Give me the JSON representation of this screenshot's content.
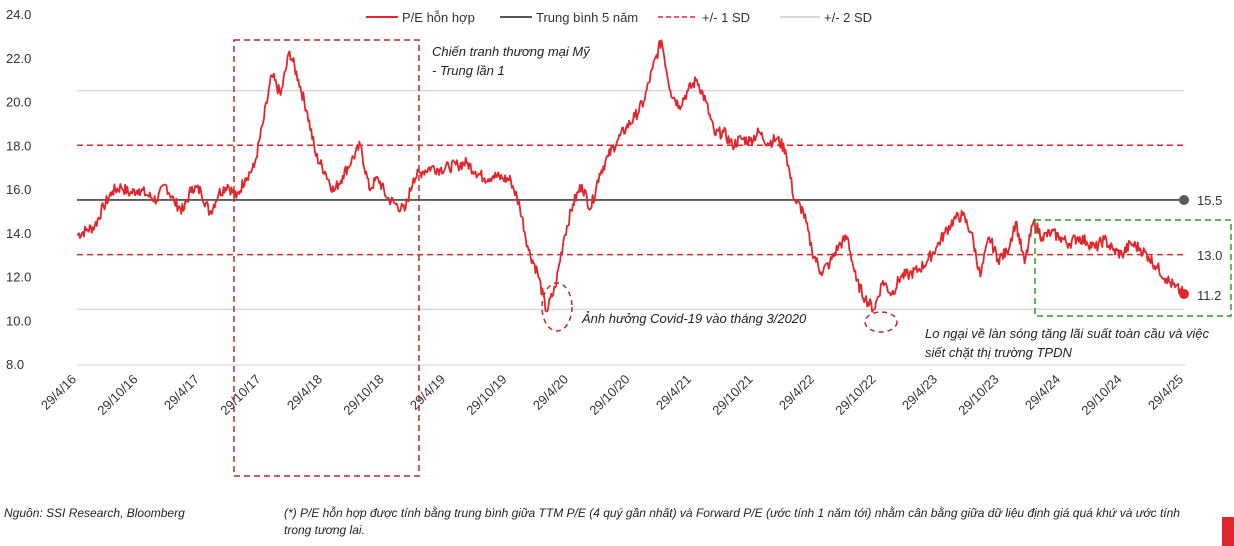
{
  "chart_data": {
    "type": "line",
    "ylim": [
      8.0,
      24.0
    ],
    "yticks": [
      "24.0",
      "22.0",
      "20.0",
      "18.0",
      "16.0",
      "14.0",
      "12.0",
      "10.0",
      "8.0"
    ],
    "xticks": [
      "29/4/16",
      "29/10/16",
      "29/4/17",
      "29/10/17",
      "29/4/18",
      "29/10/18",
      "29/4/19",
      "29/10/19",
      "29/4/20",
      "29/10/20",
      "29/4/21",
      "29/10/21",
      "29/4/22",
      "29/10/22",
      "29/4/23",
      "29/10/23",
      "29/4/24",
      "29/10/24",
      "29/4/25"
    ],
    "series": [
      {
        "name": "P/E hỗn hợp",
        "color": "#e3262b",
        "values": [
          13.9,
          14.1,
          14.3,
          15.2,
          15.9,
          16.1,
          15.8,
          16.0,
          15.7,
          15.5,
          16.2,
          15.4,
          15.0,
          16.1,
          15.9,
          14.9,
          15.8,
          16.2,
          15.6,
          16.5,
          17.0,
          19.0,
          21.2,
          20.3,
          22.3,
          21.0,
          19.5,
          17.5,
          16.8,
          15.9,
          16.6,
          17.3,
          18.0,
          16.0,
          16.5,
          15.6,
          15.3,
          15.0,
          16.5,
          16.8,
          17.0,
          16.9,
          17.0,
          17.1,
          17.2,
          16.8,
          16.5,
          16.6,
          16.5,
          16.4,
          15.2,
          13.2,
          12.2,
          10.4,
          11.5,
          13.8,
          15.3,
          16.2,
          15.1,
          16.7,
          17.5,
          18.2,
          18.8,
          19.3,
          20.0,
          21.5,
          22.8,
          20.5,
          19.8,
          20.5,
          21.0,
          20.0,
          18.5,
          18.6,
          18.0,
          18.3,
          18.2,
          18.6,
          18.1,
          18.3,
          17.8,
          15.5,
          15.0,
          13.2,
          12.2,
          12.6,
          13.4,
          13.8,
          11.8,
          11.0,
          10.5,
          11.8,
          11.2,
          12.0,
          12.1,
          12.3,
          12.7,
          13.3,
          14.0,
          14.6,
          14.8,
          14.0,
          12.0,
          13.8,
          12.8,
          13.1,
          14.5,
          12.6,
          14.5,
          13.8,
          14.0,
          13.8,
          13.5,
          13.8,
          13.6,
          13.3,
          13.7,
          13.2,
          13.0,
          13.5,
          13.3,
          12.9,
          12.4,
          11.9,
          11.5,
          11.2
        ]
      },
      {
        "name": "Trung bình 5 năm",
        "color": "#595959",
        "value": 15.5
      },
      {
        "name": "+/- 1 SD",
        "color": "#e3262b",
        "values": [
          18.0,
          13.0
        ]
      },
      {
        "name": "+/- 2 SD",
        "color": "#d9d9d9",
        "values": [
          20.5,
          10.5
        ]
      }
    ],
    "value_labels": [
      "15.5",
      "13.0",
      "11.2"
    ],
    "annotations": {
      "trade_war_line1": "Chiến tranh thương mại Mỹ",
      "trade_war_line2": "- Trung lần 1",
      "covid": "Ảnh hưởng Covid-19 vào tháng 3/2020",
      "rates_line1": "Lo ngại về làn sóng tăng lãi suất toàn cầu và việc",
      "rates_line2": "siết chặt thị trường TPDN"
    }
  },
  "footer": {
    "source": "Nguồn: SSI Research, Bloomberg",
    "note": "(*) P/E hỗn hợp được tính bằng trung bình giữa TTM P/E (4 quý gần nhất) và Forward P/E (ước tính 1 năm tới) nhằm cân bằng giữa dữ liệu định giá quá khứ và ước tính trong tương lai."
  },
  "colors": {
    "accent": "#e3262b",
    "mean": "#595959",
    "sd2": "#d9d9d9",
    "box_green": "#2e9e2e"
  }
}
